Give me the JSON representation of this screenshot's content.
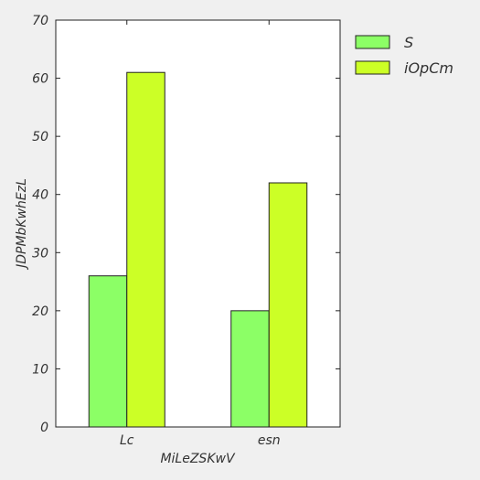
{
  "chart_data": {
    "type": "bar",
    "categories": [
      "Lc",
      "esn"
    ],
    "series": [
      {
        "name": "S",
        "values": [
          26,
          20
        ],
        "color": "#8cff66"
      },
      {
        "name": "iOpCm",
        "values": [
          61,
          42
        ],
        "color": "#ccff26"
      }
    ],
    "xlabel": "MiLeZSKwV",
    "ylabel": "JDPMbKwhEzL",
    "ylim": [
      0,
      70
    ],
    "yticks": [
      0,
      10,
      20,
      30,
      40,
      50,
      60,
      70
    ],
    "grid": false,
    "legend_position": "right"
  }
}
